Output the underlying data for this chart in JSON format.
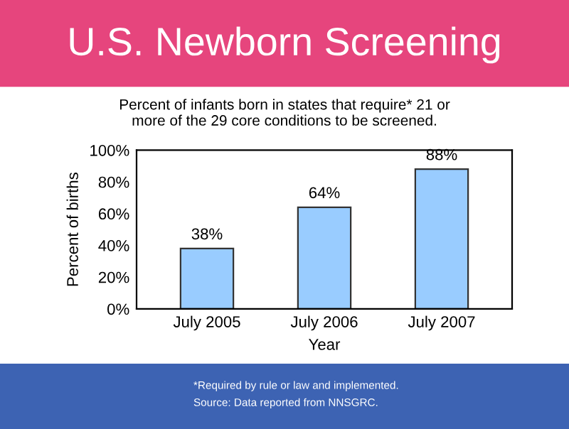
{
  "chart_data": {
    "type": "bar",
    "title": "U.S. Newborn Screening",
    "subtitle": "Percent of infants born in states that require* 21 or\nmore of the 29 core conditions to be screened.",
    "xlabel": "Year",
    "ylabel": "Percent of births",
    "categories": [
      "July 2005",
      "July 2006",
      "July 2007"
    ],
    "values": [
      38,
      64,
      88
    ],
    "value_labels": [
      "38%",
      "64%",
      "88%"
    ],
    "color": "#99ccff",
    "ylim": [
      0,
      100
    ],
    "yticks": [
      {
        "value": 0,
        "label": "0%"
      },
      {
        "value": 20,
        "label": "20%"
      },
      {
        "value": 40,
        "label": "40%"
      },
      {
        "value": 60,
        "label": "60%"
      },
      {
        "value": 80,
        "label": "80%"
      },
      {
        "value": 100,
        "label": "100%"
      }
    ],
    "grid": false,
    "annotations": [
      "*Required by rule or law and implemented.",
      "Source: Data reported from NNSGRC."
    ]
  }
}
